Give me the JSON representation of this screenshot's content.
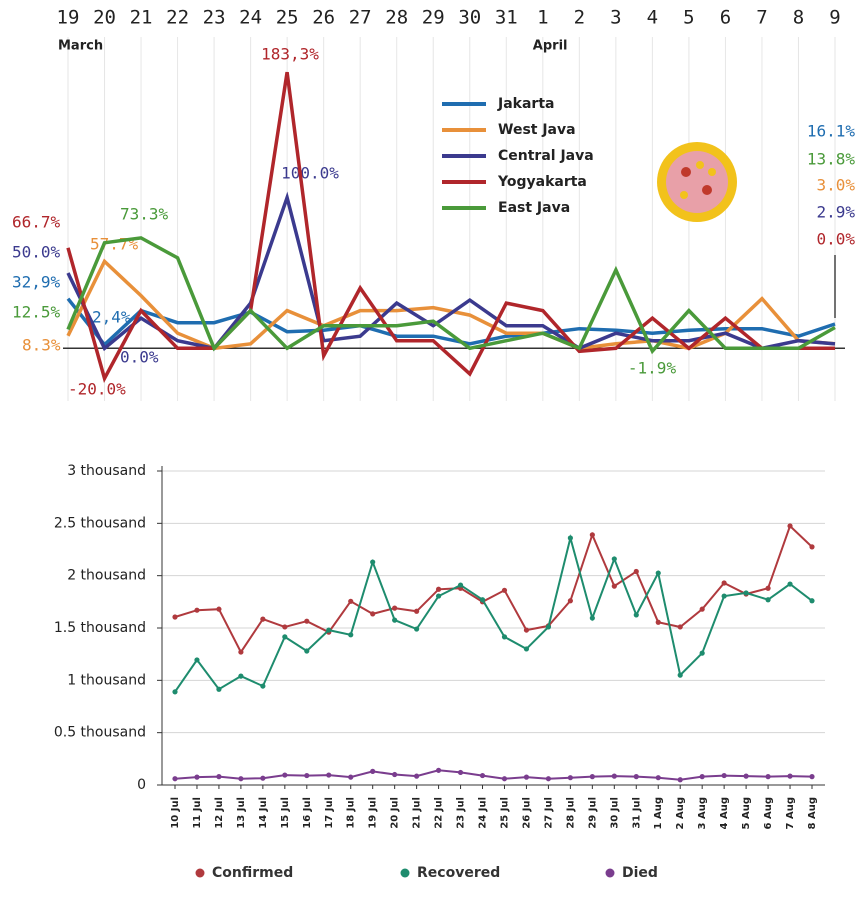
{
  "chart_data": [
    {
      "type": "line",
      "categories": [
        "19",
        "20",
        "21",
        "22",
        "23",
        "24",
        "25",
        "26",
        "27",
        "28",
        "29",
        "30",
        "31",
        "1",
        "2",
        "3",
        "4",
        "5",
        "6",
        "7",
        "8",
        "9"
      ],
      "category_groups": [
        "March",
        null,
        null,
        null,
        null,
        null,
        null,
        null,
        null,
        null,
        null,
        null,
        null,
        "April",
        null,
        null,
        null,
        null,
        null,
        null,
        null,
        null
      ],
      "ylim": [
        -35,
        200
      ],
      "xgrid": true,
      "legend": "upper center",
      "series": [
        {
          "name": "Jakarta",
          "color": "#1f6db0",
          "values": [
            32.9,
            2.4,
            25,
            17,
            17,
            24,
            11,
            12,
            15,
            8,
            8,
            3,
            8,
            10,
            13,
            12,
            10,
            12,
            13,
            13,
            8,
            16.1
          ],
          "value_labels": [
            "32,9%",
            "2,4%",
            null,
            null,
            null,
            null,
            null,
            null,
            null,
            null,
            null,
            null,
            null,
            null,
            null,
            null,
            null,
            null,
            null,
            null,
            null,
            "16.1%"
          ]
        },
        {
          "name": "West Java",
          "color": "#e8903a",
          "values": [
            8.3,
            57.7,
            35,
            10,
            0,
            3,
            25,
            15,
            25,
            25,
            27,
            22,
            10,
            10,
            0,
            3,
            5,
            0,
            10,
            33,
            5,
            3.0
          ],
          "value_labels": [
            "8.3%",
            "57.7%",
            null,
            null,
            null,
            null,
            null,
            null,
            null,
            null,
            null,
            null,
            null,
            null,
            null,
            null,
            null,
            null,
            null,
            null,
            null,
            "3.0%"
          ]
        },
        {
          "name": "Central Java",
          "color": "#3b3a8e",
          "values": [
            50.0,
            0.0,
            20,
            5,
            0,
            30,
            100.0,
            5,
            8,
            30,
            15,
            32,
            15,
            15,
            0,
            10,
            5,
            5,
            10,
            0,
            5,
            2.9
          ],
          "value_labels": [
            "50.0%",
            "0.0%",
            null,
            null,
            null,
            null,
            "100.0%",
            null,
            null,
            null,
            null,
            null,
            null,
            null,
            null,
            null,
            null,
            null,
            null,
            null,
            null,
            "2.9%"
          ]
        },
        {
          "name": "Yogyakarta",
          "color": "#b0262b",
          "values": [
            66.7,
            -20.0,
            25,
            0,
            0,
            25,
            183.3,
            -5,
            40,
            5,
            5,
            -17,
            30,
            25,
            -2,
            0,
            20,
            0,
            20,
            0,
            0,
            0.0
          ],
          "value_labels": [
            "66.7%",
            "-20.0%",
            null,
            null,
            null,
            null,
            "183,3%",
            null,
            null,
            null,
            null,
            null,
            null,
            null,
            null,
            null,
            null,
            null,
            null,
            null,
            null,
            "0.0%"
          ]
        },
        {
          "name": "East Java",
          "color": "#4a9a3a",
          "values": [
            12.5,
            70,
            73.3,
            60,
            0,
            25,
            0,
            15,
            15,
            15,
            18,
            0,
            5,
            10,
            0,
            52,
            -1.9,
            25,
            0,
            0,
            0,
            13.8
          ],
          "value_labels": [
            "12.5%",
            null,
            "73.3%",
            null,
            null,
            null,
            null,
            null,
            null,
            null,
            null,
            null,
            null,
            null,
            null,
            null,
            "-1.9%",
            null,
            null,
            null,
            null,
            "13.8%"
          ]
        }
      ]
    },
    {
      "type": "line",
      "categories": [
        "10 Jul",
        "11 Jul",
        "12 Jul",
        "13 Jul",
        "14 Jul",
        "15 Jul",
        "16 Jul",
        "17 Jul",
        "18 Jul",
        "19 Jul",
        "20 Jul",
        "21 Jul",
        "22 Jul",
        "23 Jul",
        "24 Jul",
        "25 Jul",
        "26 Jul",
        "27 Jul",
        "28 Jul",
        "29 Jul",
        "30 Jul",
        "31 Jul",
        "1 Aug",
        "2 Aug",
        "3 Aug",
        "4 Aug",
        "5 Aug",
        "6 Aug",
        "7 Aug",
        "8 Aug"
      ],
      "ylim": [
        0,
        3000
      ],
      "yticks": [
        0,
        {
          "value": 500,
          "label": "0.5 thousand"
        },
        {
          "value": 1000,
          "label": "1 thousand"
        },
        {
          "value": 1500,
          "label": "1.5 thousand"
        },
        {
          "value": 2000,
          "label": "2 thousand"
        },
        {
          "value": 2500,
          "label": "2.5 thousand"
        },
        {
          "value": 3000,
          "label": "3 thousand"
        }
      ],
      "grid": true,
      "markers": true,
      "legend": "bottom",
      "series": [
        {
          "name": "Confirmed",
          "color": "#b03a3e",
          "values": [
            1605,
            1670,
            1680,
            1270,
            1585,
            1510,
            1565,
            1460,
            1755,
            1635,
            1690,
            1660,
            1870,
            1880,
            1750,
            1860,
            1480,
            1520,
            1760,
            2390,
            1900,
            2040,
            1555,
            1510,
            1680,
            1930,
            1825,
            1880,
            2475,
            2275
          ]
        },
        {
          "name": "Recovered",
          "color": "#1e8c6e",
          "values": [
            890,
            1195,
            915,
            1040,
            945,
            1415,
            1280,
            1480,
            1435,
            2130,
            1575,
            1490,
            1805,
            1910,
            1770,
            1415,
            1300,
            1510,
            2360,
            1595,
            2160,
            1625,
            2025,
            1050,
            1260,
            1805,
            1835,
            1770,
            1920,
            1760
          ]
        },
        {
          "name": "Died",
          "color": "#7a3d8e",
          "values": [
            60,
            75,
            80,
            60,
            65,
            95,
            90,
            95,
            75,
            130,
            100,
            85,
            140,
            120,
            90,
            60,
            75,
            60,
            70,
            80,
            85,
            80,
            70,
            50,
            80,
            90,
            85,
            80,
            85,
            80
          ]
        }
      ]
    }
  ]
}
